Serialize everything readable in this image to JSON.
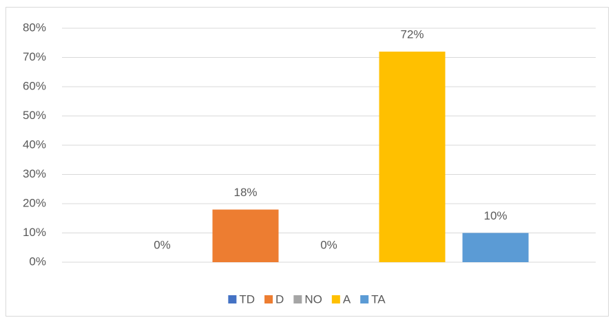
{
  "chart_data": {
    "type": "bar",
    "categories": [
      null
    ],
    "series": [
      {
        "name": "TD",
        "color": "#4472c4",
        "values": [
          0
        ],
        "value_labels": [
          "0%"
        ]
      },
      {
        "name": "D",
        "color": "#ed7d31",
        "values": [
          18
        ],
        "value_labels": [
          "18%"
        ]
      },
      {
        "name": "NO",
        "color": "#a5a5a5",
        "values": [
          0
        ],
        "value_labels": [
          "0%"
        ]
      },
      {
        "name": "A",
        "color": "#ffc000",
        "values": [
          72
        ],
        "value_labels": [
          "72%"
        ]
      },
      {
        "name": "TA",
        "color": "#5b9bd5",
        "values": [
          10
        ],
        "value_labels": [
          "10%"
        ]
      }
    ],
    "ylim": [
      0,
      80
    ],
    "yticks": [
      {
        "value": 0,
        "label": "0%"
      },
      {
        "value": 10,
        "label": "10%"
      },
      {
        "value": 20,
        "label": "20%"
      },
      {
        "value": 30,
        "label": "30%"
      },
      {
        "value": 40,
        "label": "40%"
      },
      {
        "value": 50,
        "label": "50%"
      },
      {
        "value": 60,
        "label": "60%"
      },
      {
        "value": 70,
        "label": "70%"
      },
      {
        "value": 80,
        "label": "80%"
      }
    ],
    "grid": true,
    "legend": "bottom"
  }
}
